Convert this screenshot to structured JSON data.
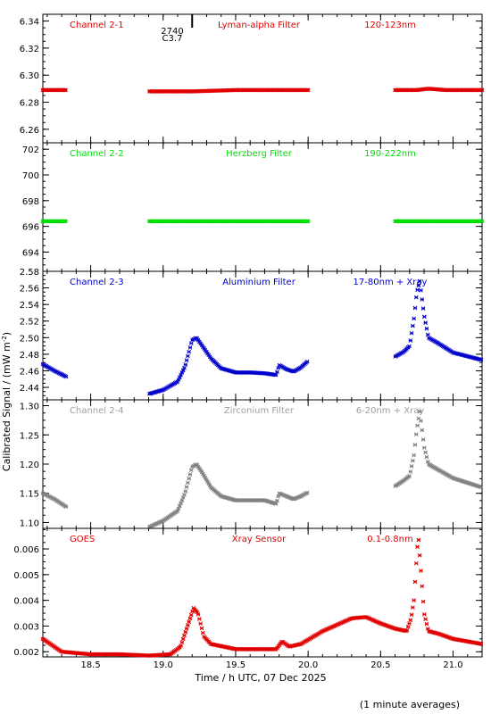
{
  "chart_data": {
    "type": "scatter",
    "xlabel": "Time / h UTC, 07 Dec 2025",
    "ylabel": "Calibrated Signal / (mW m",
    "ylabel_sup": "-2",
    "ylabel_close": ")",
    "footnote": "(1 minute averages)",
    "xlim": [
      18.17,
      21.2
    ],
    "xticks": [
      "18.5",
      "19.0",
      "19.5",
      "20.0",
      "20.5",
      "21.0"
    ],
    "marker": {
      "label_a": "2740",
      "label_b": "C3.7",
      "x": 19.2
    },
    "panels": [
      {
        "id": "ch21",
        "channel": "Channel 2-1",
        "filter": "Lyman-alpha Filter",
        "band": "120-123nm",
        "color": "#e00000",
        "labelColor": "#e00000",
        "ylim": [
          6.25,
          6.345
        ],
        "yticks": [
          "6.26",
          "6.28",
          "6.30",
          "6.32",
          "6.34"
        ],
        "points": [
          [
            18.17,
            6.289
          ],
          [
            18.25,
            6.289
          ],
          [
            18.33,
            6.289
          ],
          [
            18.9,
            6.288
          ],
          [
            19.2,
            6.288
          ],
          [
            19.5,
            6.289
          ],
          [
            19.8,
            6.289
          ],
          [
            20.0,
            6.289
          ],
          [
            20.6,
            6.289
          ],
          [
            20.75,
            6.289
          ],
          [
            20.83,
            6.29
          ],
          [
            20.95,
            6.289
          ],
          [
            21.2,
            6.289
          ]
        ],
        "gaps": [
          [
            18.33,
            18.9
          ],
          [
            20.0,
            20.6
          ]
        ],
        "density": 0.0075
      },
      {
        "id": "ch22",
        "channel": "Channel 2-2",
        "filter": "Herzberg Filter",
        "band": "190-222nm",
        "color": "#00dd00",
        "labelColor": "#00dd00",
        "ylim": [
          692.5,
          702.5
        ],
        "yticks": [
          "694",
          "696",
          "698",
          "700",
          "702"
        ],
        "points": [
          [
            18.17,
            696.4
          ],
          [
            18.33,
            696.4
          ],
          [
            18.9,
            696.4
          ],
          [
            19.5,
            696.4
          ],
          [
            20.0,
            696.4
          ],
          [
            20.6,
            696.4
          ],
          [
            21.2,
            696.4
          ]
        ],
        "gaps": [
          [
            18.33,
            18.9
          ],
          [
            20.0,
            20.6
          ]
        ],
        "density": 0.0075
      },
      {
        "id": "ch23",
        "channel": "Channel 2-3",
        "filter": "Aluminium Filter",
        "band": "17-80nm + Xray",
        "color": "#0000cc",
        "labelColor": "#0000cc",
        "ylim": [
          2.425,
          2.58
        ],
        "yticks": [
          "2.44",
          "2.46",
          "2.48",
          "2.50",
          "2.52",
          "2.54",
          "2.56",
          "2.58"
        ],
        "points": [
          [
            18.17,
            2.468
          ],
          [
            18.25,
            2.46
          ],
          [
            18.33,
            2.453
          ],
          [
            18.9,
            2.432
          ],
          [
            19.0,
            2.437
          ],
          [
            19.1,
            2.447
          ],
          [
            19.15,
            2.465
          ],
          [
            19.2,
            2.497
          ],
          [
            19.23,
            2.5
          ],
          [
            19.27,
            2.49
          ],
          [
            19.33,
            2.475
          ],
          [
            19.4,
            2.463
          ],
          [
            19.5,
            2.458
          ],
          [
            19.6,
            2.458
          ],
          [
            19.7,
            2.457
          ],
          [
            19.78,
            2.455
          ],
          [
            19.8,
            2.467
          ],
          [
            19.85,
            2.462
          ],
          [
            19.9,
            2.459
          ],
          [
            19.95,
            2.464
          ],
          [
            20.0,
            2.472
          ],
          [
            20.6,
            2.477
          ],
          [
            20.66,
            2.483
          ],
          [
            20.7,
            2.49
          ],
          [
            20.73,
            2.523
          ],
          [
            20.75,
            2.555
          ],
          [
            20.77,
            2.568
          ],
          [
            20.8,
            2.527
          ],
          [
            20.83,
            2.5
          ],
          [
            20.9,
            2.493
          ],
          [
            21.0,
            2.482
          ],
          [
            21.2,
            2.473
          ]
        ],
        "gaps": [
          [
            18.33,
            18.9
          ],
          [
            20.0,
            20.6
          ]
        ],
        "density": 0.008
      },
      {
        "id": "ch24",
        "channel": "Channel 2-4",
        "filter": "Zirconium Filter",
        "band": "6-20nm + Xray",
        "color": "#808080",
        "labelColor": "#a0a0a0",
        "ylim": [
          1.09,
          1.31
        ],
        "yticks": [
          "1.10",
          "1.15",
          "1.20",
          "1.25",
          "1.30"
        ],
        "points": [
          [
            18.17,
            1.15
          ],
          [
            18.25,
            1.14
          ],
          [
            18.33,
            1.127
          ],
          [
            18.9,
            1.092
          ],
          [
            19.0,
            1.103
          ],
          [
            19.1,
            1.12
          ],
          [
            19.15,
            1.15
          ],
          [
            19.2,
            1.195
          ],
          [
            19.23,
            1.2
          ],
          [
            19.27,
            1.185
          ],
          [
            19.33,
            1.16
          ],
          [
            19.4,
            1.145
          ],
          [
            19.5,
            1.138
          ],
          [
            19.6,
            1.138
          ],
          [
            19.7,
            1.138
          ],
          [
            19.78,
            1.132
          ],
          [
            19.8,
            1.15
          ],
          [
            19.85,
            1.145
          ],
          [
            19.9,
            1.14
          ],
          [
            19.95,
            1.145
          ],
          [
            20.0,
            1.152
          ],
          [
            20.6,
            1.162
          ],
          [
            20.66,
            1.172
          ],
          [
            20.7,
            1.18
          ],
          [
            20.73,
            1.215
          ],
          [
            20.75,
            1.26
          ],
          [
            20.77,
            1.29
          ],
          [
            20.8,
            1.23
          ],
          [
            20.83,
            1.2
          ],
          [
            20.9,
            1.19
          ],
          [
            21.0,
            1.176
          ],
          [
            21.2,
            1.16
          ]
        ],
        "gaps": [
          [
            18.33,
            18.9
          ],
          [
            20.0,
            20.6
          ]
        ],
        "density": 0.008
      },
      {
        "id": "goes",
        "channel": "GOES",
        "filter": "Xray Sensor",
        "band": "0.1-0.8nm",
        "color": "#e00000",
        "labelColor": "#e00000",
        "ylim": [
          0.0018,
          0.0068
        ],
        "yticks": [
          "0.002",
          "0.003",
          "0.004",
          "0.005",
          "0.006"
        ],
        "points": [
          [
            18.17,
            0.0025
          ],
          [
            18.3,
            0.002
          ],
          [
            18.5,
            0.0019
          ],
          [
            18.7,
            0.0019
          ],
          [
            18.9,
            0.00185
          ],
          [
            19.05,
            0.0019
          ],
          [
            19.12,
            0.0022
          ],
          [
            19.18,
            0.0032
          ],
          [
            19.21,
            0.0037
          ],
          [
            19.24,
            0.0035
          ],
          [
            19.28,
            0.0026
          ],
          [
            19.33,
            0.0023
          ],
          [
            19.5,
            0.0021
          ],
          [
            19.7,
            0.0021
          ],
          [
            19.78,
            0.0021
          ],
          [
            19.82,
            0.0024
          ],
          [
            19.87,
            0.0022
          ],
          [
            19.95,
            0.0023
          ],
          [
            20.1,
            0.0028
          ],
          [
            20.3,
            0.0033
          ],
          [
            20.4,
            0.00335
          ],
          [
            20.5,
            0.0031
          ],
          [
            20.6,
            0.0029
          ],
          [
            20.68,
            0.0028
          ],
          [
            20.71,
            0.0033
          ],
          [
            20.73,
            0.004
          ],
          [
            20.75,
            0.0058
          ],
          [
            20.76,
            0.0065
          ],
          [
            20.78,
            0.005
          ],
          [
            20.8,
            0.0035
          ],
          [
            20.83,
            0.0028
          ],
          [
            20.9,
            0.0027
          ],
          [
            21.0,
            0.0025
          ],
          [
            21.2,
            0.0023
          ]
        ],
        "gaps": [],
        "density": 0.008
      }
    ]
  }
}
